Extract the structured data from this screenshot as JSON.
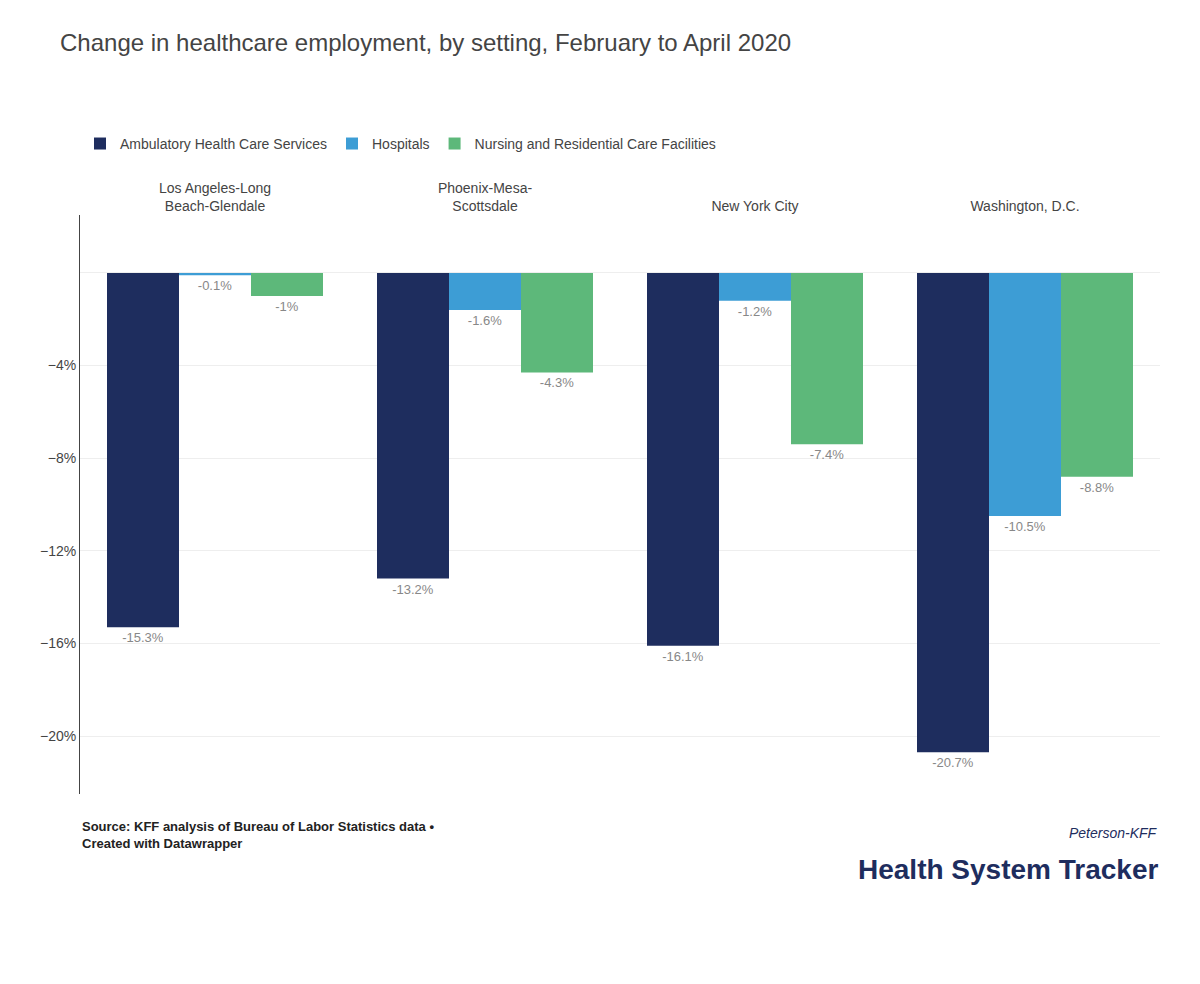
{
  "chart_data": {
    "type": "bar",
    "title": "Change in healthcare employment, by setting, February to April 2020",
    "categories": [
      "Los Angeles-Long\nBeach-Glendale",
      "Phoenix-Mesa-\nScottsdale",
      "New York City",
      "Washington, D.C."
    ],
    "series": [
      {
        "name": "Ambulatory Health Care Services",
        "color": "#1e2d5e",
        "values": [
          -15.3,
          -13.2,
          -16.1,
          -20.7
        ],
        "value_labels": [
          "-15.3%",
          "-13.2%",
          "-16.1%",
          "-20.7%"
        ]
      },
      {
        "name": "Hospitals",
        "color": "#3d9dd5",
        "values": [
          -0.1,
          -1.6,
          -1.2,
          -10.5
        ],
        "value_labels": [
          "-0.1%",
          "-1.6%",
          "-1.2%",
          "-10.5%"
        ]
      },
      {
        "name": "Nursing and Residential Care Facilities",
        "color": "#5db87a",
        "values": [
          -1.0,
          -4.3,
          -7.4,
          -8.8
        ],
        "value_labels": [
          "-1%",
          "-4.3%",
          "-7.4%",
          "-8.8%"
        ]
      }
    ],
    "ylim": [
      -22.5,
      2.5
    ],
    "yticks": [
      {
        "value": 0,
        "label": null
      },
      {
        "value": -4,
        "label": "−4%"
      },
      {
        "value": -8,
        "label": "−8%"
      },
      {
        "value": -12,
        "label": "−12%"
      },
      {
        "value": -16,
        "label": "−16%"
      },
      {
        "value": -20,
        "label": "−20%"
      }
    ],
    "grid": true,
    "legend": "top",
    "data_labels": true,
    "annotations": [
      "Source: KFF analysis of Bureau of Labor Statistics data •\nCreated with Datawrapper",
      "Peterson-KFF",
      "Health System Tracker"
    ]
  }
}
